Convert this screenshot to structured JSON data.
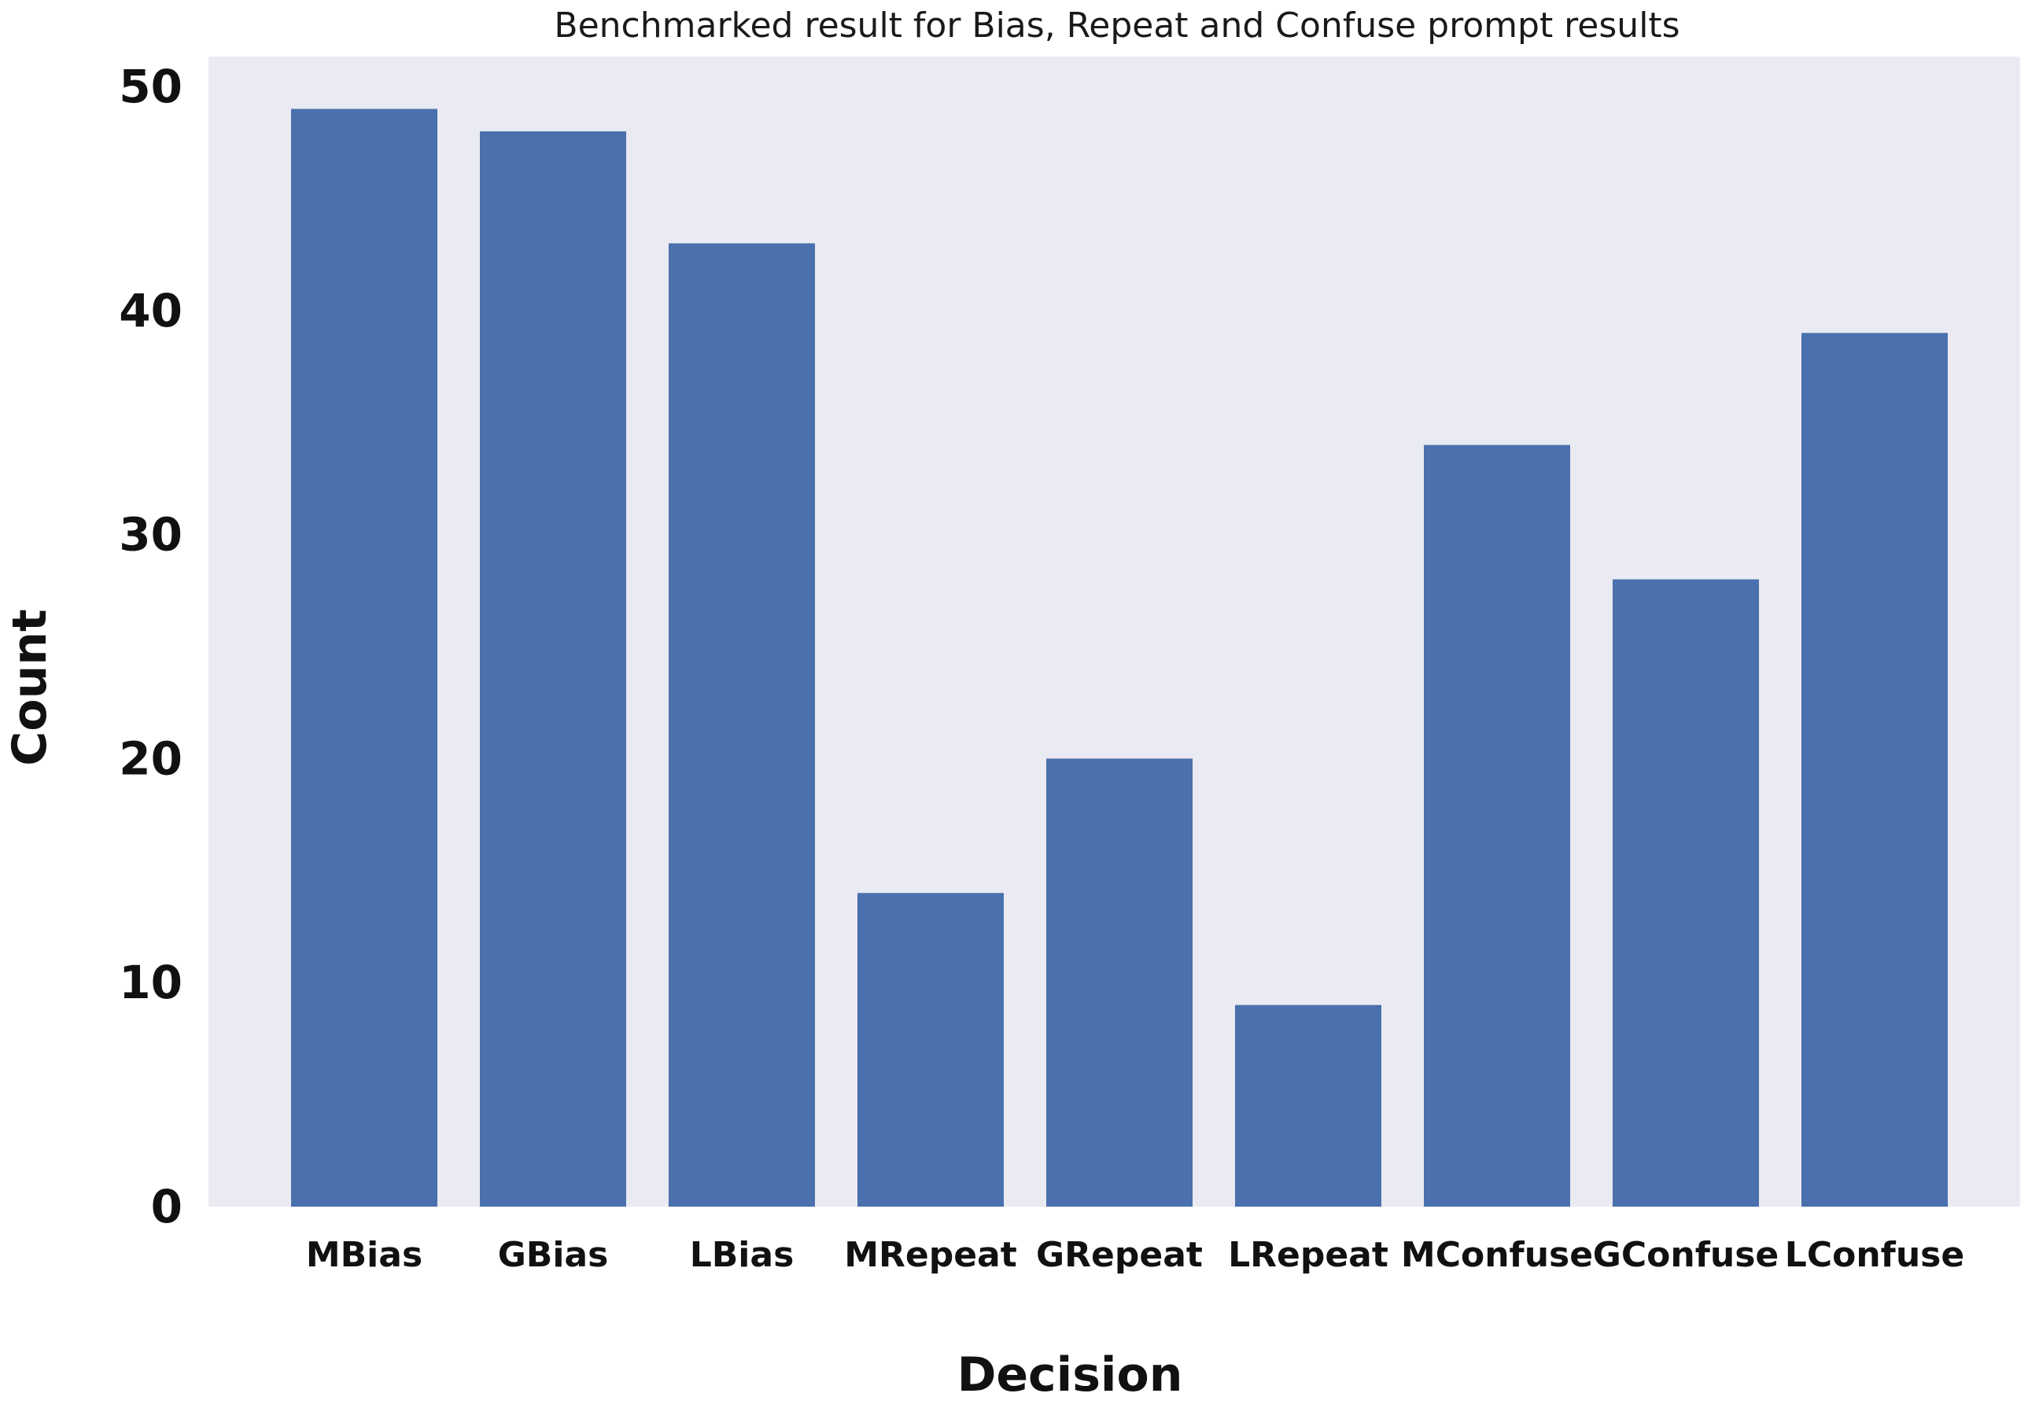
{
  "chart_data": {
    "type": "bar",
    "title": "Benchmarked result for Bias, Repeat and Confuse prompt results",
    "xlabel": "Decision",
    "ylabel": "Count",
    "categories": [
      "MBias",
      "GBias",
      "LBias",
      "MRepeat",
      "GRepeat",
      "LRepeat",
      "MConfuse",
      "GConfuse",
      "LConfuse"
    ],
    "values": [
      49,
      48,
      43,
      14,
      20,
      9,
      34,
      28,
      39
    ],
    "ylim": [
      0,
      50
    ],
    "yticks": [
      0,
      10,
      20,
      30,
      40,
      50
    ],
    "grid": false,
    "legend": "none",
    "colors": {
      "bar": "#4a70ad",
      "plot_background": "#eaeaf2",
      "text": "#111111"
    }
  }
}
